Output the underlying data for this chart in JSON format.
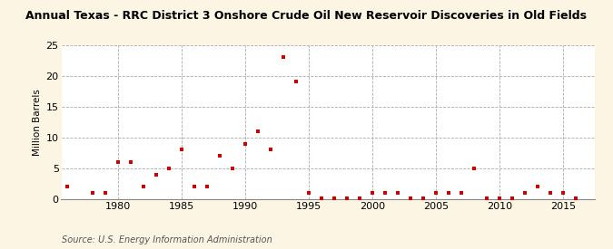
{
  "title": "Annual Texas - RRC District 3 Onshore Crude Oil New Reservoir Discoveries in Old Fields",
  "ylabel": "Million Barrels",
  "source": "Source: U.S. Energy Information Administration",
  "background_color": "#fdf5e4",
  "plot_background_color": "#ffffff",
  "marker_color": "#cc0000",
  "xlim": [
    1975.5,
    2017.5
  ],
  "ylim": [
    0,
    25
  ],
  "yticks": [
    0,
    5,
    10,
    15,
    20,
    25
  ],
  "xticks": [
    1980,
    1985,
    1990,
    1995,
    2000,
    2005,
    2010,
    2015
  ],
  "years": [
    1976,
    1978,
    1979,
    1980,
    1981,
    1982,
    1983,
    1984,
    1985,
    1986,
    1987,
    1988,
    1989,
    1990,
    1991,
    1992,
    1993,
    1994,
    1995,
    1996,
    1997,
    1998,
    1999,
    2000,
    2001,
    2002,
    2003,
    2004,
    2005,
    2006,
    2007,
    2008,
    2009,
    2010,
    2011,
    2012,
    2013,
    2014,
    2015,
    2016
  ],
  "values": [
    2.0,
    1.0,
    1.0,
    6.0,
    6.0,
    2.0,
    4.0,
    5.0,
    8.0,
    2.0,
    2.0,
    7.0,
    5.0,
    9.0,
    11.0,
    8.0,
    23.0,
    19.0,
    1.0,
    0.15,
    0.15,
    0.15,
    0.1,
    1.0,
    1.0,
    1.0,
    0.15,
    0.15,
    1.0,
    1.0,
    1.0,
    5.0,
    0.15,
    0.1,
    0.15,
    1.0,
    2.0,
    1.0,
    1.0,
    0.1
  ],
  "title_fontsize": 9,
  "tick_fontsize": 8,
  "ylabel_fontsize": 7.5,
  "source_fontsize": 7
}
